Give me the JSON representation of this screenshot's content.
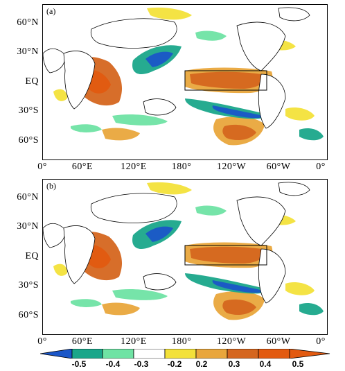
{
  "panels": [
    {
      "id": "a",
      "label": "(a)"
    },
    {
      "id": "b",
      "label": "(b)"
    }
  ],
  "axes": {
    "lat_labels": [
      "60°N",
      "30°N",
      "EQ",
      "30°S",
      "60°S"
    ],
    "lon_labels": [
      "0°",
      "60°E",
      "120°E",
      "180°",
      "120°W",
      "60°W",
      "0°"
    ]
  },
  "colorbar": {
    "labels": [
      "-0.5",
      "-0.4",
      "-0.3",
      "-0.2",
      "0.2",
      "0.3",
      "0.4",
      "0.5"
    ],
    "colors": [
      "#1a56c8",
      "#1aa68a",
      "#6fe3a4",
      "#ffffff",
      "#f3e13a",
      "#e9a63c",
      "#d5661f",
      "#e25a10"
    ]
  },
  "map_style": {
    "land_outline": "#000000",
    "ocean": "#ffffff"
  }
}
